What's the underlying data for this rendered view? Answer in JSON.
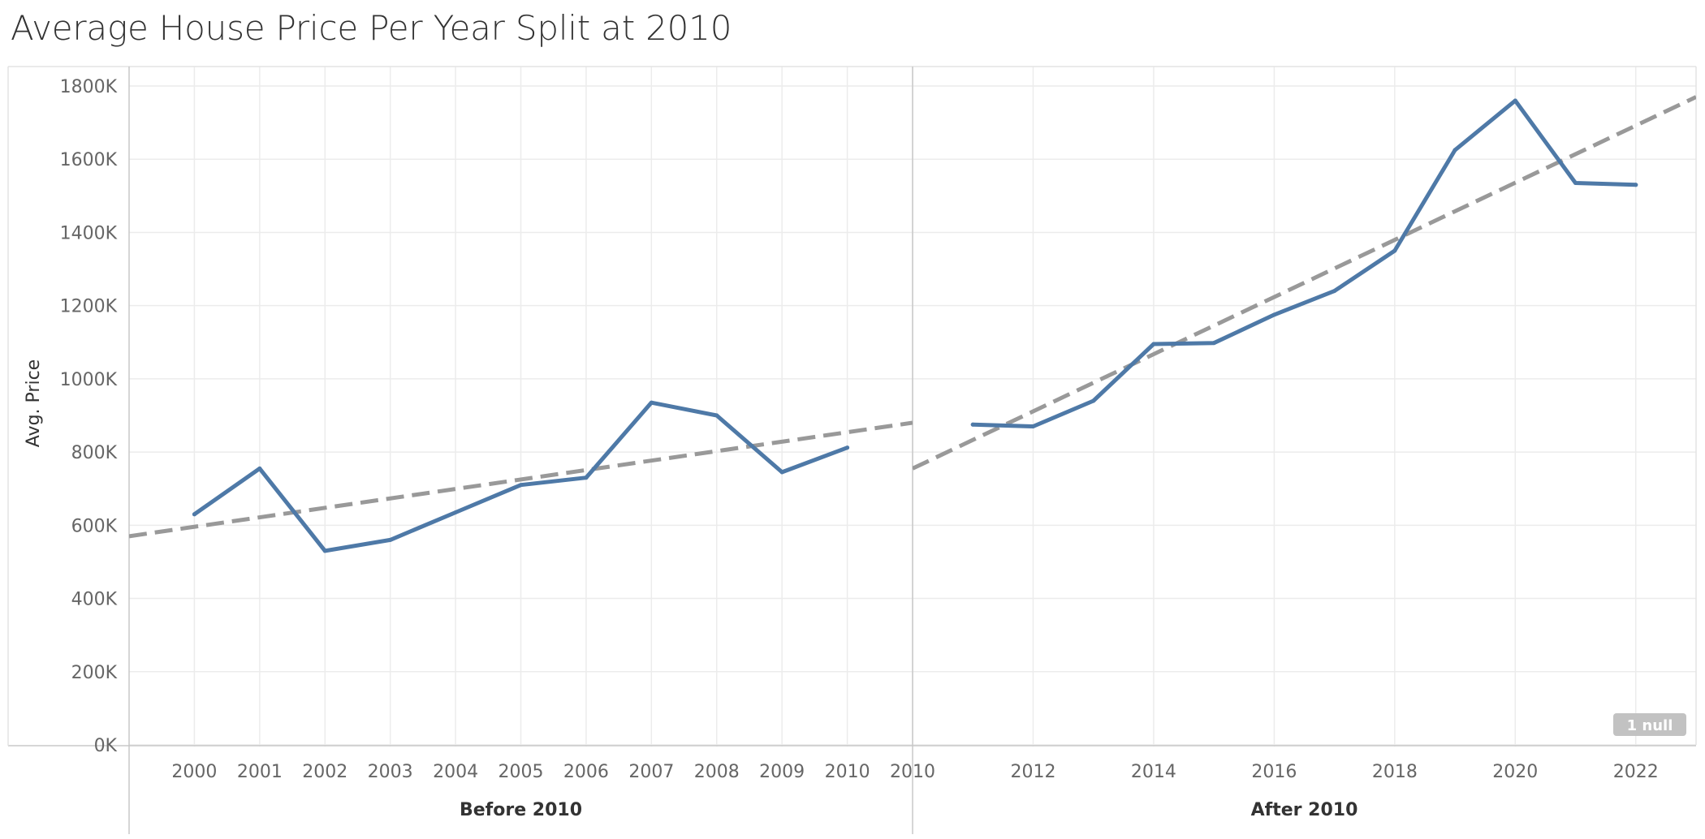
{
  "title": "Average House Price Per Year Split at 2010",
  "y_axis_label": "Avg. Price",
  "null_badge": "1 null",
  "colors": {
    "series": "#4e79a7",
    "trend": "#999999",
    "grid": "#ececec",
    "axis": "#c8c8c8",
    "tick_text": "#666666",
    "header_text": "#333333",
    "badge_bg": "#c2c2c2",
    "badge_text": "#ffffff"
  },
  "chart_data": {
    "type": "line",
    "title": "Average House Price Per Year Split at 2010",
    "ylabel": "Avg. Price",
    "ylim": [
      0,
      1800000
    ],
    "y_ticks": [
      0,
      200000,
      400000,
      600000,
      800000,
      1000000,
      1200000,
      1400000,
      1600000,
      1800000
    ],
    "y_tick_labels": [
      "0K",
      "200K",
      "400K",
      "600K",
      "800K",
      "1000K",
      "1200K",
      "1400K",
      "1600K",
      "1800K"
    ],
    "grid": true,
    "legend": "none",
    "panels": [
      {
        "header": "Before 2010",
        "xlim": [
          1999,
          2011
        ],
        "x_ticks": [
          2000,
          2001,
          2002,
          2003,
          2004,
          2005,
          2006,
          2007,
          2008,
          2009,
          2010
        ],
        "x_tick_labels": [
          "2000",
          "2001",
          "2002",
          "2003",
          "2004",
          "2005",
          "2006",
          "2007",
          "2008",
          "2009",
          "2010"
        ],
        "x": [
          2000,
          2001,
          2002,
          2003,
          2004,
          2005,
          2006,
          2007,
          2008,
          2009,
          2010
        ],
        "y": [
          630000,
          755000,
          530000,
          560000,
          635000,
          710000,
          730000,
          935000,
          900000,
          745000,
          812000
        ],
        "trend": {
          "x": [
            1999,
            2011
          ],
          "y": [
            570000,
            880000
          ]
        }
      },
      {
        "header": "After 2010",
        "xlim": [
          2010,
          2023
        ],
        "x_ticks": [
          2010,
          2012,
          2014,
          2016,
          2018,
          2020,
          2022
        ],
        "x_tick_labels": [
          "2010",
          "2012",
          "2014",
          "2016",
          "2018",
          "2020",
          "2022"
        ],
        "x": [
          2011,
          2012,
          2013,
          2014,
          2015,
          2016,
          2017,
          2018,
          2019,
          2020,
          2021,
          2022
        ],
        "y": [
          875000,
          870000,
          940000,
          1095000,
          1098000,
          1175000,
          1240000,
          1350000,
          1625000,
          1760000,
          1535000,
          1530000
        ],
        "trend": {
          "x": [
            2010,
            2023
          ],
          "y": [
            755000,
            1770000
          ]
        }
      }
    ]
  }
}
